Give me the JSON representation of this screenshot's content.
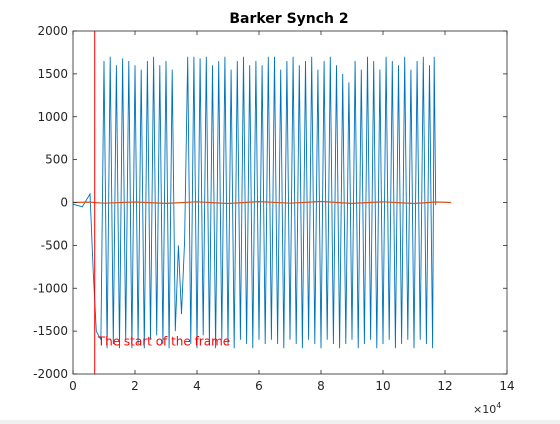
{
  "chart_data": {
    "type": "line",
    "title": "Barker Synch 2",
    "xlabel": "",
    "ylabel": "",
    "x_exponent_label": "×10^4",
    "x_exponent_base": "×10",
    "x_exponent_power": "4",
    "xlim": [
      0,
      140000
    ],
    "ylim": [
      -2000,
      2000
    ],
    "xticks": [
      0,
      20000,
      40000,
      60000,
      80000,
      100000,
      120000,
      140000
    ],
    "xtick_labels": [
      "0",
      "2",
      "4",
      "6",
      "8",
      "10",
      "12",
      "14"
    ],
    "yticks": [
      -2000,
      -1500,
      -1000,
      -500,
      0,
      500,
      1000,
      1500,
      2000
    ],
    "ytick_labels": [
      "-2000",
      "-1500",
      "-1000",
      "-500",
      "0",
      "500",
      "1000",
      "1500",
      "2000"
    ],
    "grid": false,
    "series": [
      {
        "color": "#0072bd",
        "description_role": "received signal",
        "x_start": 0,
        "x_end": 117000,
        "points": [
          [
            0,
            -20
          ],
          [
            3000,
            -50
          ],
          [
            5500,
            100
          ],
          [
            6500,
            -800
          ],
          [
            7500,
            -1500
          ],
          [
            9000,
            -1600
          ],
          [
            10000,
            1650
          ],
          [
            11000,
            -1700
          ],
          [
            12000,
            1700
          ],
          [
            13000,
            -1650
          ],
          [
            14000,
            1600
          ],
          [
            15000,
            -1700
          ],
          [
            16000,
            1680
          ],
          [
            17000,
            -1600
          ],
          [
            18000,
            1650
          ],
          [
            19000,
            -1700
          ],
          [
            20000,
            1600
          ],
          [
            21000,
            -1650
          ],
          [
            22000,
            1550
          ],
          [
            23000,
            -1700
          ],
          [
            24000,
            1650
          ],
          [
            25000,
            -1600
          ],
          [
            26000,
            1700
          ],
          [
            27000,
            -1550
          ],
          [
            28000,
            1600
          ],
          [
            29000,
            -1650
          ],
          [
            30000,
            1650
          ],
          [
            31000,
            -1700
          ],
          [
            32000,
            1550
          ],
          [
            33000,
            -1500
          ],
          [
            34000,
            -500
          ],
          [
            35000,
            -1300
          ],
          [
            36000,
            -450
          ],
          [
            37000,
            1700
          ],
          [
            38000,
            -1650
          ],
          [
            39000,
            1700
          ],
          [
            40000,
            -1700
          ],
          [
            41000,
            1680
          ],
          [
            42000,
            -1550
          ],
          [
            43000,
            1700
          ],
          [
            44000,
            -1650
          ],
          [
            45000,
            1600
          ],
          [
            46000,
            -1700
          ],
          [
            47000,
            1650
          ],
          [
            48000,
            -1600
          ],
          [
            49000,
            1700
          ],
          [
            50000,
            -1650
          ],
          [
            51000,
            1550
          ],
          [
            52000,
            -1700
          ],
          [
            53000,
            1650
          ],
          [
            54000,
            -1600
          ],
          [
            55000,
            1700
          ],
          [
            56000,
            -1650
          ],
          [
            57000,
            1600
          ],
          [
            58000,
            -1700
          ],
          [
            59000,
            1650
          ],
          [
            60000,
            -1600
          ],
          [
            61000,
            1600
          ],
          [
            62000,
            -1650
          ],
          [
            63000,
            1700
          ],
          [
            64000,
            -1600
          ],
          [
            65000,
            1700
          ],
          [
            66000,
            -1650
          ],
          [
            67000,
            1550
          ],
          [
            68000,
            -1700
          ],
          [
            69000,
            1650
          ],
          [
            70000,
            -1600
          ],
          [
            71000,
            1700
          ],
          [
            72000,
            -1650
          ],
          [
            73000,
            1600
          ],
          [
            74000,
            -1700
          ],
          [
            75000,
            1650
          ],
          [
            76000,
            -1600
          ],
          [
            77000,
            1700
          ],
          [
            78000,
            -1650
          ],
          [
            79000,
            1550
          ],
          [
            80000,
            -1700
          ],
          [
            81000,
            1650
          ],
          [
            82000,
            -1600
          ],
          [
            83000,
            1700
          ],
          [
            84000,
            -1650
          ],
          [
            85000,
            1600
          ],
          [
            86000,
            -1700
          ],
          [
            87000,
            1500
          ],
          [
            88000,
            -1650
          ],
          [
            89000,
            1400
          ],
          [
            90000,
            -1600
          ],
          [
            91000,
            1650
          ],
          [
            92000,
            -1700
          ],
          [
            93000,
            1550
          ],
          [
            94000,
            -1650
          ],
          [
            95000,
            1700
          ],
          [
            96000,
            -1600
          ],
          [
            97000,
            1650
          ],
          [
            98000,
            -1700
          ],
          [
            99000,
            1550
          ],
          [
            100000,
            -1650
          ],
          [
            101000,
            1700
          ],
          [
            102000,
            -1600
          ],
          [
            103000,
            1650
          ],
          [
            104000,
            -1700
          ],
          [
            105000,
            1600
          ],
          [
            106000,
            -1650
          ],
          [
            107000,
            1700
          ],
          [
            108000,
            -1600
          ],
          [
            109000,
            1550
          ],
          [
            110000,
            -1700
          ],
          [
            111000,
            1650
          ],
          [
            112000,
            -1600
          ],
          [
            113000,
            1700
          ],
          [
            114000,
            -1650
          ],
          [
            115000,
            1600
          ],
          [
            116000,
            -1700
          ],
          [
            116500,
            1700
          ],
          [
            117000,
            -30
          ]
        ]
      },
      {
        "color": "#d95319",
        "description_role": "correlation",
        "points": [
          [
            0,
            0
          ],
          [
            5000,
            5
          ],
          [
            10000,
            -8
          ],
          [
            20000,
            6
          ],
          [
            30000,
            -10
          ],
          [
            40000,
            8
          ],
          [
            50000,
            -12
          ],
          [
            60000,
            10
          ],
          [
            70000,
            -8
          ],
          [
            80000,
            12
          ],
          [
            90000,
            -10
          ],
          [
            100000,
            8
          ],
          [
            110000,
            -12
          ],
          [
            117000,
            6
          ],
          [
            122000,
            0
          ]
        ]
      }
    ],
    "annotations": [
      {
        "type": "vline",
        "x": 7000,
        "color": "#ff0000"
      },
      {
        "type": "text",
        "text": "The start of the frame",
        "x": 8000,
        "y": -1620,
        "color": "#ff0000"
      }
    ]
  }
}
